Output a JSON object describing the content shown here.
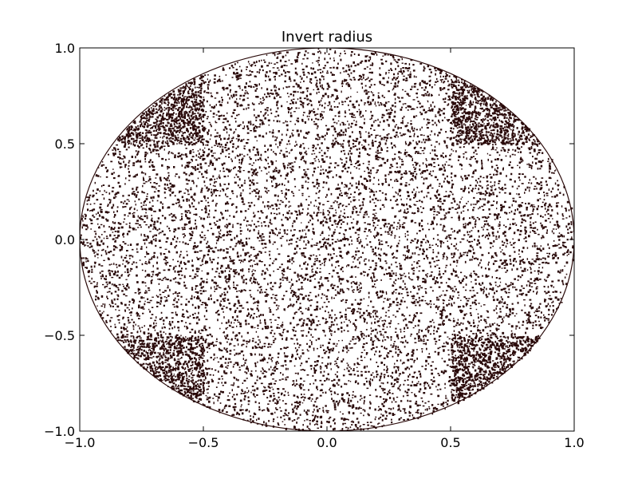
{
  "chart_data": {
    "type": "scatter",
    "title": "Invert radius",
    "xlabel": "",
    "ylabel": "",
    "xlim": [
      -1.0,
      1.0
    ],
    "ylim": [
      -1.0,
      1.0
    ],
    "xticks": [
      -1.0,
      -0.5,
      0.0,
      0.5,
      1.0
    ],
    "yticks": [
      -1.0,
      -0.5,
      0.0,
      0.5,
      1.0
    ],
    "xtick_labels": [
      "−1.0",
      "−0.5",
      "0.0",
      "0.5",
      "1.0"
    ],
    "ytick_labels": [
      "−1.0",
      "−0.5",
      "0.0",
      "0.5",
      "1.0"
    ],
    "grid": false,
    "point_color": "#2a0a0a",
    "series": [
      {
        "distribution": "random points inside the unit disc; denser in the four corner regions outside the central cross (|x|>0.5 and |y|>0.5)",
        "disc_radius": 1.0,
        "cross_half_width": 0.5,
        "inner_count": 9000,
        "corner_count": 2600
      }
    ]
  }
}
